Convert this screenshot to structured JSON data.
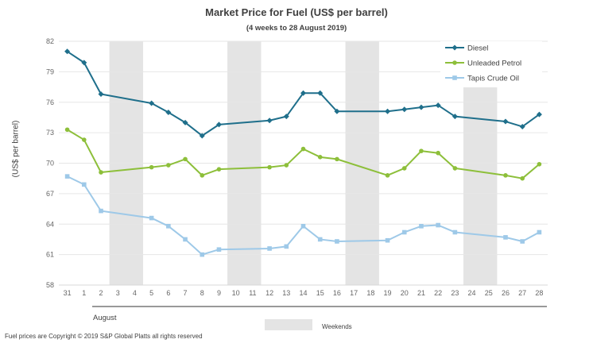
{
  "chart_data": {
    "type": "line",
    "title": "Market Price for Fuel (US$ per barrel)",
    "subtitle": "(4 weeks to 28 August 2019)",
    "ylabel": "(US$ per barrel)",
    "ylim": [
      58,
      82
    ],
    "yticks": [
      58,
      61,
      64,
      67,
      70,
      73,
      76,
      79,
      82
    ],
    "categories": [
      "31",
      "1",
      "2",
      "3",
      "4",
      "5",
      "6",
      "7",
      "8",
      "9",
      "10",
      "11",
      "12",
      "13",
      "14",
      "15",
      "16",
      "17",
      "18",
      "19",
      "20",
      "21",
      "22",
      "23",
      "24",
      "25",
      "26",
      "27",
      "28"
    ],
    "month_label": "August",
    "weekend_label": "Weekends",
    "weekends": [
      [
        "3",
        "4"
      ],
      [
        "10",
        "11"
      ],
      [
        "17",
        "18"
      ],
      [
        "24",
        "25"
      ]
    ],
    "series": [
      {
        "name": "Diesel",
        "color": "#1f6f8b",
        "marker": "diamond",
        "values": [
          81.0,
          79.9,
          76.8,
          null,
          null,
          75.9,
          75.0,
          74.0,
          72.7,
          73.8,
          null,
          null,
          74.2,
          74.6,
          76.9,
          76.9,
          75.1,
          null,
          null,
          75.1,
          75.3,
          75.5,
          75.7,
          74.6,
          null,
          null,
          74.1,
          73.6,
          74.8
        ]
      },
      {
        "name": "Unleaded Petrol",
        "color": "#8dbf3a",
        "marker": "circle",
        "values": [
          73.3,
          72.3,
          69.1,
          null,
          null,
          69.6,
          69.8,
          70.4,
          68.8,
          69.4,
          null,
          null,
          69.6,
          69.8,
          71.4,
          70.6,
          70.4,
          null,
          null,
          68.8,
          69.5,
          71.2,
          71.0,
          69.5,
          null,
          null,
          68.8,
          68.5,
          69.9
        ]
      },
      {
        "name": "Tapis Crude Oil",
        "color": "#9ec9e8",
        "marker": "square",
        "values": [
          68.7,
          67.9,
          65.3,
          null,
          null,
          64.6,
          63.8,
          62.5,
          61.0,
          61.5,
          null,
          null,
          61.6,
          61.8,
          63.8,
          62.5,
          62.3,
          null,
          null,
          62.4,
          63.2,
          63.8,
          63.9,
          63.2,
          null,
          null,
          62.7,
          62.3,
          63.2
        ]
      }
    ],
    "grid": true,
    "legend": "top-right"
  },
  "footer": "Fuel prices are Copyright © 2019 S&P Global Platts all rights reserved"
}
